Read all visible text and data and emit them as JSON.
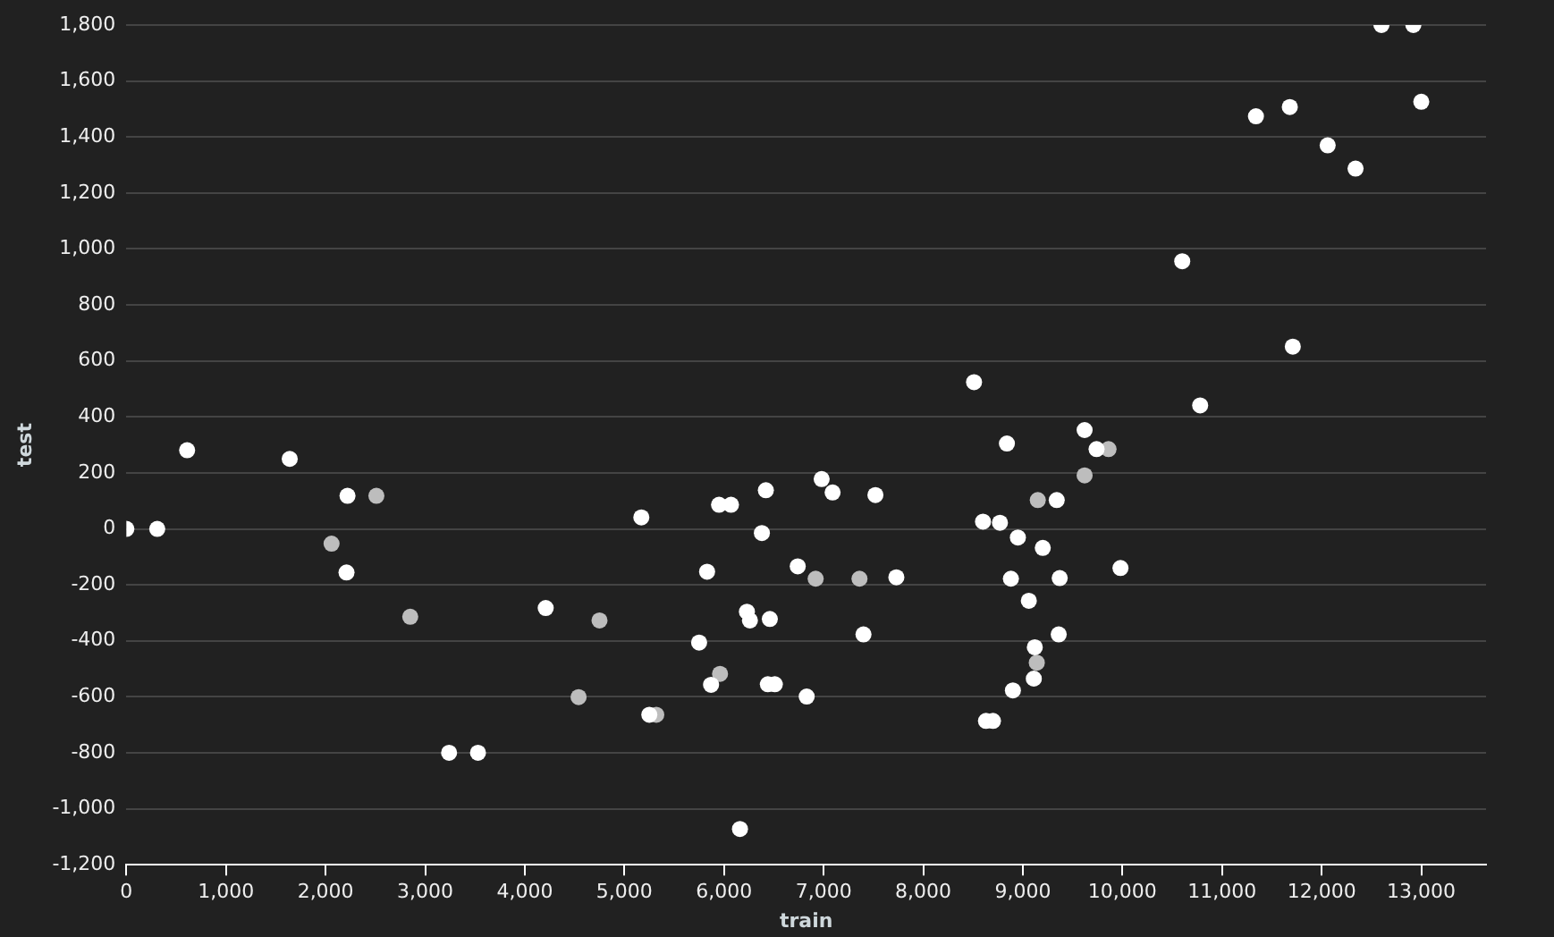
{
  "chart_data": {
    "type": "scatter",
    "xlabel": "train",
    "ylabel": "test",
    "xlim": [
      0,
      13650
    ],
    "ylim": [
      -1200,
      1800
    ],
    "xticks": [
      {
        "value": 0,
        "label": "0"
      },
      {
        "value": 1000,
        "label": "1,000"
      },
      {
        "value": 2000,
        "label": "2,000"
      },
      {
        "value": 3000,
        "label": "3,000"
      },
      {
        "value": 4000,
        "label": "4,000"
      },
      {
        "value": 5000,
        "label": "5,000"
      },
      {
        "value": 6000,
        "label": "6,000"
      },
      {
        "value": 7000,
        "label": "7,000"
      },
      {
        "value": 8000,
        "label": "8,000"
      },
      {
        "value": 9000,
        "label": "9,000"
      },
      {
        "value": 10000,
        "label": "10,000"
      },
      {
        "value": 11000,
        "label": "11,000"
      },
      {
        "value": 12000,
        "label": "12,000"
      },
      {
        "value": 13000,
        "label": "13,000"
      }
    ],
    "yticks": [
      {
        "value": -1200,
        "label": "-1,200"
      },
      {
        "value": -1000,
        "label": "-1,000"
      },
      {
        "value": -800,
        "label": "-800"
      },
      {
        "value": -600,
        "label": "-600"
      },
      {
        "value": -400,
        "label": "-400"
      },
      {
        "value": -200,
        "label": "-200"
      },
      {
        "value": 0,
        "label": "0"
      },
      {
        "value": 200,
        "label": "200"
      },
      {
        "value": 400,
        "label": "400"
      },
      {
        "value": 600,
        "label": "600"
      },
      {
        "value": 800,
        "label": "800"
      },
      {
        "value": 1000,
        "label": "1,000"
      },
      {
        "value": 1200,
        "label": "1,200"
      },
      {
        "value": 1400,
        "label": "1,400"
      },
      {
        "value": 1600,
        "label": "1,600"
      },
      {
        "value": 1800,
        "label": "1,800"
      }
    ],
    "grid": "y",
    "legend": false,
    "marker": "circle",
    "series": [
      {
        "color": "#ffffff",
        "x": [
          0,
          310,
          610,
          1640,
          2220,
          2210,
          3240,
          3530,
          4210,
          5170,
          5950,
          6070,
          6420,
          6980,
          7090,
          7520,
          8840,
          8510,
          8600,
          8770,
          8950,
          9200,
          6380,
          5830,
          6740,
          7730,
          8880,
          9060,
          6230,
          6260,
          6460,
          7400,
          5750,
          9120,
          5870,
          6440,
          6510,
          6830,
          9110,
          8900,
          5250,
          8630,
          8700,
          6160,
          10780,
          9620,
          9740,
          9340,
          9980,
          9370,
          9360,
          12600,
          12920,
          11340,
          11680,
          13000,
          12060,
          12340,
          10600,
          11710
        ],
        "values": [
          0,
          0,
          281,
          250,
          118,
          -156,
          -800,
          -800,
          -283,
          41,
          86,
          86,
          138,
          178,
          130,
          121,
          305,
          524,
          26,
          22,
          -31,
          -68,
          -15,
          -153,
          -134,
          -173,
          -178,
          -257,
          -296,
          -327,
          -322,
          -377,
          -406,
          -423,
          -557,
          -555,
          -555,
          -599,
          -535,
          -577,
          -664,
          -686,
          -686,
          -1072,
          441,
          353,
          285,
          103,
          -140,
          -176,
          -377,
          1800,
          1800,
          1474,
          1507,
          1526,
          1370,
          1287,
          956,
          651
        ]
      },
      {
        "color": "#bdbdbd",
        "x": [
          2060,
          2510,
          2850,
          4750,
          4540,
          5320,
          5960,
          6920,
          7360,
          9150,
          9140,
          9860,
          9620
        ],
        "values": [
          -53,
          118,
          -314,
          -327,
          -601,
          -664,
          -518,
          -178,
          -178,
          103,
          -478,
          285,
          191
        ]
      }
    ]
  }
}
